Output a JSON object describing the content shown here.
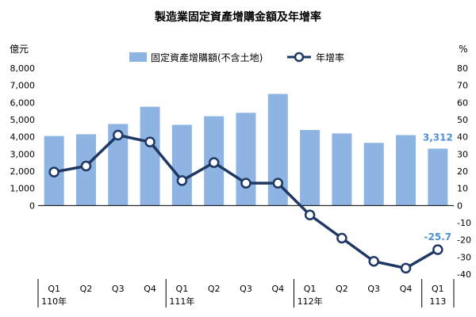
{
  "chart_data": {
    "type": "bar+line",
    "title": "製造業固定資產增購金額及年增率",
    "left_axis_unit": "億元",
    "right_axis_unit": "%",
    "left_axis": {
      "min": -4000,
      "max": 8000,
      "ticks": [
        0,
        1000,
        2000,
        3000,
        4000,
        5000,
        6000,
        7000,
        8000
      ],
      "tick_labels": [
        "0",
        "1,000",
        "2,000",
        "3,000",
        "4,000",
        "5,000",
        "6,000",
        "7,000",
        "8,000"
      ]
    },
    "right_axis": {
      "min": -40,
      "max": 80,
      "ticks": [
        -40,
        -30,
        -20,
        -10,
        0,
        10,
        20,
        30,
        40,
        50,
        60,
        70,
        80
      ],
      "tick_labels": [
        "-40",
        "-30",
        "-20",
        "-10",
        "0",
        "10",
        "20",
        "30",
        "40",
        "50",
        "60",
        "70",
        "80"
      ]
    },
    "categories": [
      "Q1",
      "Q2",
      "Q3",
      "Q4",
      "Q1",
      "Q2",
      "Q3",
      "Q4",
      "Q1",
      "Q2",
      "Q3",
      "Q4",
      "Q1"
    ],
    "year_labels": [
      {
        "index": 0,
        "label": "110年"
      },
      {
        "index": 4,
        "label": "111年"
      },
      {
        "index": 8,
        "label": "112年"
      },
      {
        "index": 12,
        "label": "113"
      }
    ],
    "series": [
      {
        "name": "固定資產增購額(不含土地)",
        "type": "bar",
        "axis": "left",
        "color": "#8db4e2",
        "values": [
          4050,
          4150,
          4750,
          5750,
          4700,
          5200,
          5400,
          6500,
          4400,
          4200,
          3650,
          4100,
          3312
        ]
      },
      {
        "name": "年增率",
        "type": "line",
        "axis": "right",
        "color": "#1f3864",
        "values": [
          19.5,
          23,
          41,
          37,
          14.5,
          25,
          13,
          13,
          -5.5,
          -19,
          -32.5,
          -36.5,
          -25.7
        ]
      }
    ],
    "annotations": [
      {
        "label": "3,312",
        "series": 0,
        "index": 12,
        "color": "#4f8fd6"
      },
      {
        "label": "-25.7",
        "series": 1,
        "index": 12,
        "color": "#4f8fd6"
      }
    ],
    "legend_position": "top-center",
    "grid": false
  }
}
